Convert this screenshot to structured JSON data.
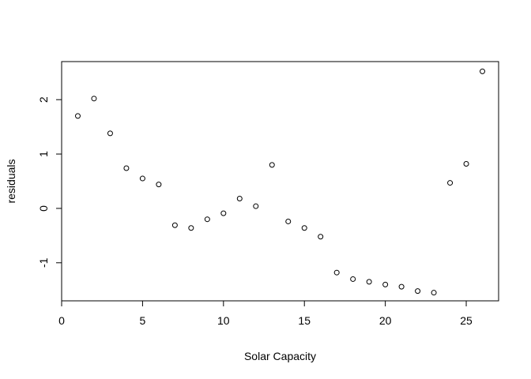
{
  "chart_data": {
    "type": "scatter",
    "xlabel": "Solar Capacity",
    "ylabel": "residuals",
    "xlim": [
      0,
      27
    ],
    "ylim": [
      -1.7,
      2.7
    ],
    "xticks": [
      0,
      5,
      10,
      15,
      20,
      25
    ],
    "yticks": [
      -1,
      0,
      1,
      2
    ],
    "grid": false,
    "marker": "open-circle",
    "points": [
      {
        "x": 1,
        "y": 1.7
      },
      {
        "x": 2,
        "y": 2.02
      },
      {
        "x": 3,
        "y": 1.38
      },
      {
        "x": 4,
        "y": 0.74
      },
      {
        "x": 5,
        "y": 0.55
      },
      {
        "x": 6,
        "y": 0.44
      },
      {
        "x": 7,
        "y": -0.31
      },
      {
        "x": 8,
        "y": -0.36
      },
      {
        "x": 9,
        "y": -0.2
      },
      {
        "x": 10,
        "y": -0.09
      },
      {
        "x": 11,
        "y": 0.18
      },
      {
        "x": 12,
        "y": 0.04
      },
      {
        "x": 13,
        "y": 0.8
      },
      {
        "x": 14,
        "y": -0.24
      },
      {
        "x": 15,
        "y": -0.36
      },
      {
        "x": 16,
        "y": -0.52
      },
      {
        "x": 17,
        "y": -1.18
      },
      {
        "x": 18,
        "y": -1.3
      },
      {
        "x": 19,
        "y": -1.35
      },
      {
        "x": 20,
        "y": -1.4
      },
      {
        "x": 21,
        "y": -1.44
      },
      {
        "x": 22,
        "y": -1.52
      },
      {
        "x": 23,
        "y": -1.55
      },
      {
        "x": 24,
        "y": 0.47
      },
      {
        "x": 25,
        "y": 0.82
      },
      {
        "x": 26,
        "y": 2.52
      }
    ]
  }
}
